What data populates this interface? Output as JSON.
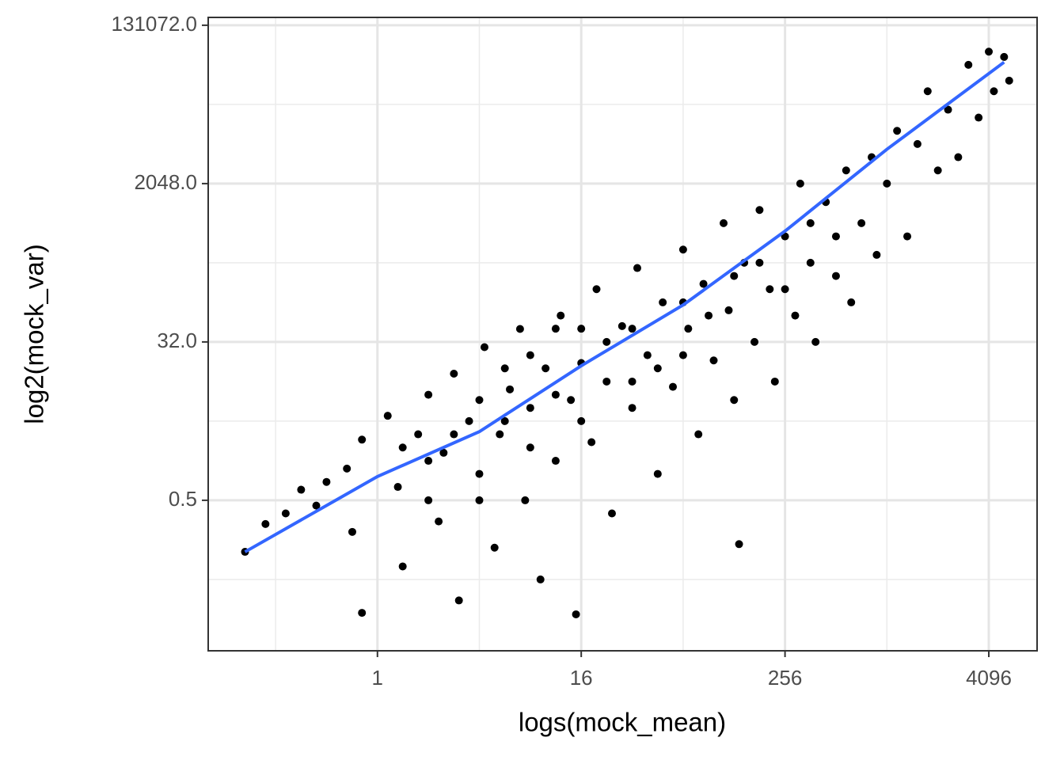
{
  "chart_data": {
    "type": "scatter",
    "x_label": "logs(mock_mean)",
    "y_label": "log2(mock_var)",
    "xscale": "log2",
    "yscale": "log2",
    "xlim": [
      0.1,
      7900
    ],
    "ylim": [
      0.0096,
      161000
    ],
    "xticks": [
      1,
      16,
      256,
      4096
    ],
    "yticks": [
      0.5,
      {
        "value": 32,
        "label": "32.0"
      },
      {
        "value": 2048,
        "label": "2048.0"
      },
      {
        "value": 131072,
        "label": "131072.0"
      }
    ],
    "minor_xticks": [
      0.25,
      4,
      64,
      1024
    ],
    "minor_yticks": [
      0.0625,
      4,
      256,
      16384
    ],
    "grid": true,
    "points": {
      "color": "#000000",
      "x": [
        0.165,
        0.218,
        0.287,
        0.354,
        0.435,
        0.5,
        0.66,
        0.71,
        0.81,
        0.81,
        1.15,
        1.32,
        1.41,
        1.74,
        2,
        2.3,
        2.46,
        2.83,
        3.03,
        3.48,
        4,
        4.29,
        4.92,
        5.28,
        6.06,
        6.96,
        7.46,
        8,
        9.19,
        9.85,
        11.3,
        12.1,
        13.9,
        14.9,
        16,
        18.4,
        19.7,
        22.6,
        24.3,
        27.9,
        32,
        34.3,
        39.4,
        45.3,
        48.5,
        55.7,
        64,
        68.6,
        78.8,
        84.4,
        97,
        111,
        119,
        128,
        147,
        169,
        181,
        208,
        223,
        256,
        294,
        315,
        362,
        388,
        446,
        512,
        588,
        630,
        724,
        832,
        891,
        1024,
        1176,
        1351,
        1552,
        1783,
        2048,
        2353,
        2702,
        3104,
        3566,
        4096,
        4390,
        5043,
        5404,
        137,
        1.41,
        2,
        2.83,
        4,
        5.66,
        8,
        11.3,
        16,
        22.6,
        32,
        45.3,
        64,
        90.5,
        128,
        181,
        256,
        362,
        512,
        8,
        4,
        2,
        16,
        32,
        64,
        11.3,
        5.66
      ],
      "y": [
        0.129,
        0.268,
        0.354,
        0.66,
        0.435,
        0.81,
        1.15,
        0.218,
        2.46,
        0.026,
        4.6,
        0.71,
        0.088,
        2.83,
        8,
        0.287,
        1.74,
        13.9,
        0.036,
        4,
        1,
        27.9,
        0.144,
        2.83,
        9.2,
        45,
        0.5,
        5.66,
        0.0625,
        16,
        1.41,
        64,
        6.96,
        0.025,
        18.4,
        2.3,
        128,
        11.3,
        0.354,
        48.5,
        5.66,
        223,
        22.6,
        1,
        90.5,
        9.85,
        362,
        45.3,
        2.83,
        147,
        19.7,
        724,
        73.5,
        6.96,
        256,
        32,
        1024,
        128,
        11.3,
        512,
        64,
        2048,
        256,
        32,
        1261,
        181,
        2896,
        90.5,
        724,
        4096,
        315,
        2048,
        8192,
        512,
        5793,
        23170,
        2896,
        14263,
        4096,
        46341,
        11585,
        65536,
        23170,
        57052,
        30574,
        0.158,
        2,
        1.41,
        2.83,
        6.96,
        4,
        22.6,
        8,
        4,
        32,
        45.3,
        16,
        90.5,
        64,
        181,
        256,
        128,
        724,
        512,
        2,
        0.5,
        0.5,
        45.3,
        11.3,
        22.6,
        45.3,
        16
      ]
    },
    "fit": {
      "color": "#3366ff",
      "x": [
        0.165,
        1,
        4,
        16,
        64,
        256,
        1024,
        5043
      ],
      "y": [
        0.129,
        0.933,
        3.03,
        17.1,
        84.4,
        588,
        5043,
        49667
      ]
    }
  }
}
